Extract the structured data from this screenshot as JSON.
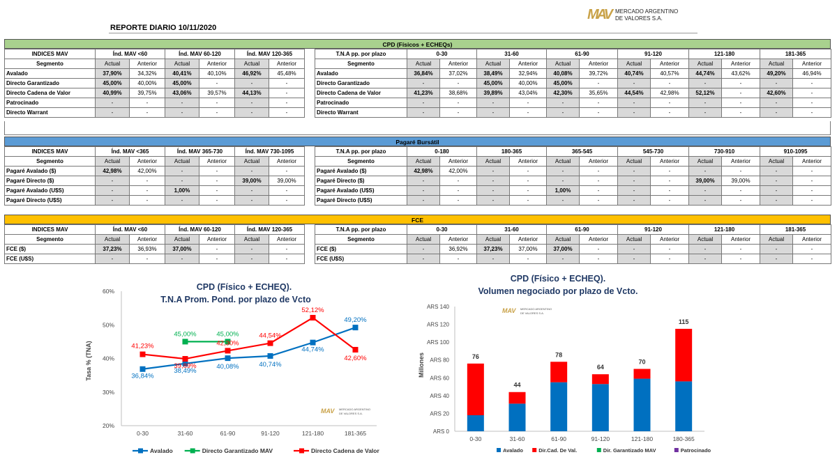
{
  "report_title": "REPORTE DIARIO 10/11/2020",
  "logo": {
    "mark": "MAV",
    "line1": "MERCADO ARGENTINO",
    "line2": "DE VALORES S.A."
  },
  "logo_small": {
    "mark": "MAV",
    "line1": "MERCADO ARGENTINO",
    "line2": "DE VALORES S.A."
  },
  "sections": [
    {
      "band": "CPD (Físicos + ECHEQs)",
      "color": "#a9d18e",
      "left_title": "INDICES MAV",
      "left_groups": [
        "Índ. MAV <60",
        "Índ. MAV 60-120",
        "Índ. MAV 120-365"
      ],
      "right_title": "T.N.A pp. por plazo",
      "right_groups": [
        "0-30",
        "31-60",
        "61-90",
        "91-120",
        "121-180",
        "181-365"
      ],
      "segment_label": "Segmento",
      "actual": "Actual",
      "anterior": "Anterior",
      "rows": [
        {
          "label": "Avalado",
          "left": [
            "37,90%",
            "34,32%",
            "40,41%",
            "40,10%",
            "46,92%",
            "45,48%"
          ],
          "right": [
            "36,84%",
            "37,02%",
            "38,49%",
            "32,94%",
            "40,08%",
            "39,72%",
            "40,74%",
            "40,57%",
            "44,74%",
            "43,62%",
            "49,20%",
            "46,94%"
          ]
        },
        {
          "label": "Directo Garantizado",
          "left": [
            "45,00%",
            "40,00%",
            "45,00%",
            "-",
            "-",
            "-"
          ],
          "right": [
            "-",
            "-",
            "45,00%",
            "40,00%",
            "45,00%",
            "-",
            "-",
            "-",
            "-",
            "-",
            "-",
            "-"
          ]
        },
        {
          "label": "Directo Cadena de Valor",
          "left": [
            "40,99%",
            "39,75%",
            "43,06%",
            "39,57%",
            "44,13%",
            "-"
          ],
          "right": [
            "41,23%",
            "38,68%",
            "39,89%",
            "43,04%",
            "42,30%",
            "35,65%",
            "44,54%",
            "42,98%",
            "52,12%",
            "-",
            "42,60%",
            "-"
          ]
        },
        {
          "label": "Patrocinado",
          "left": [
            "-",
            "-",
            "-",
            "-",
            "-",
            "-"
          ],
          "right": [
            "-",
            "-",
            "-",
            "-",
            "-",
            "-",
            "-",
            "-",
            "-",
            "-",
            "-",
            "-"
          ]
        },
        {
          "label": "Directo Warrant",
          "left": [
            "-",
            "-",
            "-",
            "-",
            "-",
            "-"
          ],
          "right": [
            "-",
            "-",
            "-",
            "-",
            "-",
            "-",
            "-",
            "-",
            "-",
            "-",
            "-",
            "-"
          ]
        }
      ]
    },
    {
      "band": "Pagaré Bursátil",
      "color": "#5b9bd5",
      "left_title": "INDICES MAV",
      "left_groups": [
        "Índ. MAV <365",
        "Índ. MAV 365-730",
        "Índ. MAV 730-1095"
      ],
      "right_title": "T.N.A pp. por plazo",
      "right_groups": [
        "0-180",
        "180-365",
        "365-545",
        "545-730",
        "730-910",
        "910-1095"
      ],
      "segment_label": "Segmento",
      "actual": "Actual",
      "anterior": "Anterior",
      "rows": [
        {
          "label": "Pagaré Avalado ($)",
          "left": [
            "42,98%",
            "42,00%",
            "-",
            "-",
            "-",
            "-"
          ],
          "right": [
            "42,98%",
            "42,00%",
            "-",
            "-",
            "-",
            "-",
            "-",
            "-",
            "-",
            "-",
            "-",
            "-"
          ]
        },
        {
          "label": "Pagaré Directo ($)",
          "left": [
            "-",
            "-",
            "-",
            "-",
            "39,00%",
            "39,00%"
          ],
          "right": [
            "-",
            "-",
            "-",
            "-",
            "-",
            "-",
            "-",
            "-",
            "39,00%",
            "39,00%",
            "-",
            "-"
          ]
        },
        {
          "label": "Pagaré Avalado (U$S)",
          "left": [
            "-",
            "-",
            "1,00%",
            "-",
            "-",
            "-"
          ],
          "right": [
            "-",
            "-",
            "-",
            "-",
            "1,00%",
            "-",
            "-",
            "-",
            "-",
            "-",
            "-",
            "-"
          ]
        },
        {
          "label": "Pagaré Directo (U$S)",
          "left": [
            "-",
            "-",
            "-",
            "-",
            "-",
            "-"
          ],
          "right": [
            "-",
            "-",
            "-",
            "-",
            "-",
            "-",
            "-",
            "-",
            "-",
            "-",
            "-",
            "-"
          ]
        }
      ]
    },
    {
      "band": "FCE",
      "color": "#ffc000",
      "left_title": "INDICES MAV",
      "left_groups": [
        "Índ. MAV <60",
        "Índ. MAV 60-120",
        "Índ. MAV 120-365"
      ],
      "right_title": "T.N.A pp. por plazo",
      "right_groups": [
        "0-30",
        "31-60",
        "61-90",
        "91-120",
        "121-180",
        "181-365"
      ],
      "segment_label": "Segmento",
      "actual": "Actual",
      "anterior": "Anterior",
      "rows": [
        {
          "label": "FCE ($)",
          "left": [
            "37,23%",
            "36,93%",
            "37,00%",
            "-",
            "-",
            "-"
          ],
          "right": [
            "-",
            "36,92%",
            "37,23%",
            "37,00%",
            "37,00%",
            "-",
            "-",
            "-",
            "-",
            "-",
            "-",
            "-"
          ]
        },
        {
          "label": "FCE (U$S)",
          "left": [
            "-",
            "-",
            "-",
            "-",
            "-",
            "-"
          ],
          "right": [
            "-",
            "-",
            "-",
            "-",
            "-",
            "-",
            "-",
            "-",
            "-",
            "-",
            "-",
            "-"
          ]
        }
      ]
    }
  ],
  "chart_data": [
    {
      "type": "line",
      "title": "CPD (Físico + ECHEQ).",
      "subtitle": "T.N.A Prom. Pond.  por plazo de Vcto",
      "ylabel": "Tasa % (TNA)",
      "categories": [
        "0-30",
        "31-60",
        "61-90",
        "91-120",
        "121-180",
        "181-365"
      ],
      "ylim": [
        20,
        60
      ],
      "yticks": [
        "20%",
        "30%",
        "40%",
        "50%",
        "60%"
      ],
      "series": [
        {
          "name": "Avalado",
          "color": "#0070c0",
          "values": [
            36.84,
            38.49,
            40.08,
            40.74,
            44.74,
            49.2
          ],
          "labels": [
            "36,84%",
            "38,49%",
            "40,08%",
            "40,74%",
            "44,74%",
            "49,20%"
          ]
        },
        {
          "name": "Directo Garantizado MAV",
          "color": "#00b050",
          "values": [
            null,
            45.0,
            45.0,
            null,
            null,
            null
          ],
          "labels": [
            "",
            "45,00%",
            "45,00%",
            "",
            "",
            ""
          ]
        },
        {
          "name": "Directo Cadena de Valor",
          "color": "#ff0000",
          "values": [
            41.23,
            39.89,
            42.3,
            44.54,
            52.12,
            42.6
          ],
          "labels": [
            "41,23%",
            "39,89%",
            "42,30%",
            "44,54%",
            "52,12%",
            "42,60%"
          ]
        }
      ],
      "legend_position": "bottom",
      "grid": false
    },
    {
      "type": "bar",
      "stacked": true,
      "title": "CPD (Físico + ECHEQ).",
      "subtitle": "Volumen negociado por plazo de Vcto.",
      "ylabel": "Millones",
      "categories": [
        "0-30",
        "31-60",
        "61-90",
        "91-120",
        "121-180",
        "180-365"
      ],
      "ylim": [
        0,
        140
      ],
      "yticks": [
        "ARS 0",
        "ARS 20",
        "ARS 40",
        "ARS 60",
        "ARS 80",
        "ARS 100",
        "ARS 120",
        "ARS 140"
      ],
      "totals": [
        76,
        44,
        78,
        64,
        70,
        115
      ],
      "series": [
        {
          "name": "Avalado",
          "color": "#0070c0",
          "values": [
            18,
            31,
            55,
            53,
            59,
            56
          ]
        },
        {
          "name": "Dir.Cad. De Val.",
          "color": "#ff0000",
          "values": [
            58,
            13,
            23,
            11,
            11,
            59
          ]
        },
        {
          "name": "Dir. Garantizado MAV",
          "color": "#00b050",
          "values": [
            0,
            0,
            0,
            0,
            0,
            0
          ]
        },
        {
          "name": "Patrocinado",
          "color": "#7030a0",
          "values": [
            0,
            0,
            0,
            0,
            0,
            0
          ]
        }
      ],
      "legend_position": "bottom",
      "grid": false
    }
  ]
}
